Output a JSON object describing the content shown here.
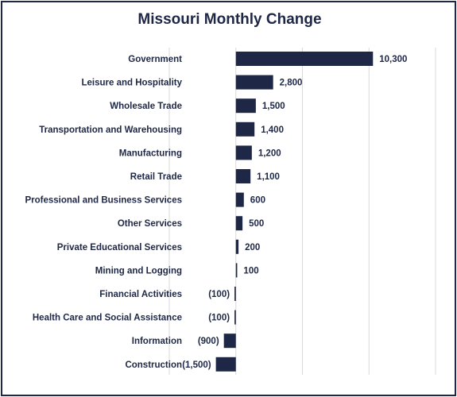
{
  "chart_data": {
    "type": "bar",
    "orientation": "horizontal",
    "title": "Missouri Monthly Change",
    "categories": [
      "Government",
      "Leisure and Hospitality",
      "Wholesale Trade",
      "Transportation and Warehousing",
      "Manufacturing",
      "Retail Trade",
      "Professional and Business Services",
      "Other Services",
      "Private Educational Services",
      "Mining and Logging",
      "Financial Activities",
      "Health Care and Social Assistance",
      "Information",
      "Construction"
    ],
    "values": [
      10300,
      2800,
      1500,
      1400,
      1200,
      1100,
      600,
      500,
      200,
      100,
      -100,
      -100,
      -900,
      -1500
    ],
    "value_labels": [
      "10,300",
      "2,800",
      "1,500",
      "1,400",
      "1,200",
      "1,100",
      "600",
      "500",
      "200",
      "100",
      "(100)",
      "(100)",
      "(900)",
      "(1,500)"
    ],
    "xlim": [
      -5000,
      15000
    ],
    "gridlines": [
      -5000,
      0,
      5000,
      10000,
      15000
    ],
    "grid": true,
    "legend": "none",
    "colors": {
      "bar": "#1e2746",
      "text": "#1e2746",
      "grid": "#d9d9d9",
      "border": "#1e2746"
    }
  }
}
